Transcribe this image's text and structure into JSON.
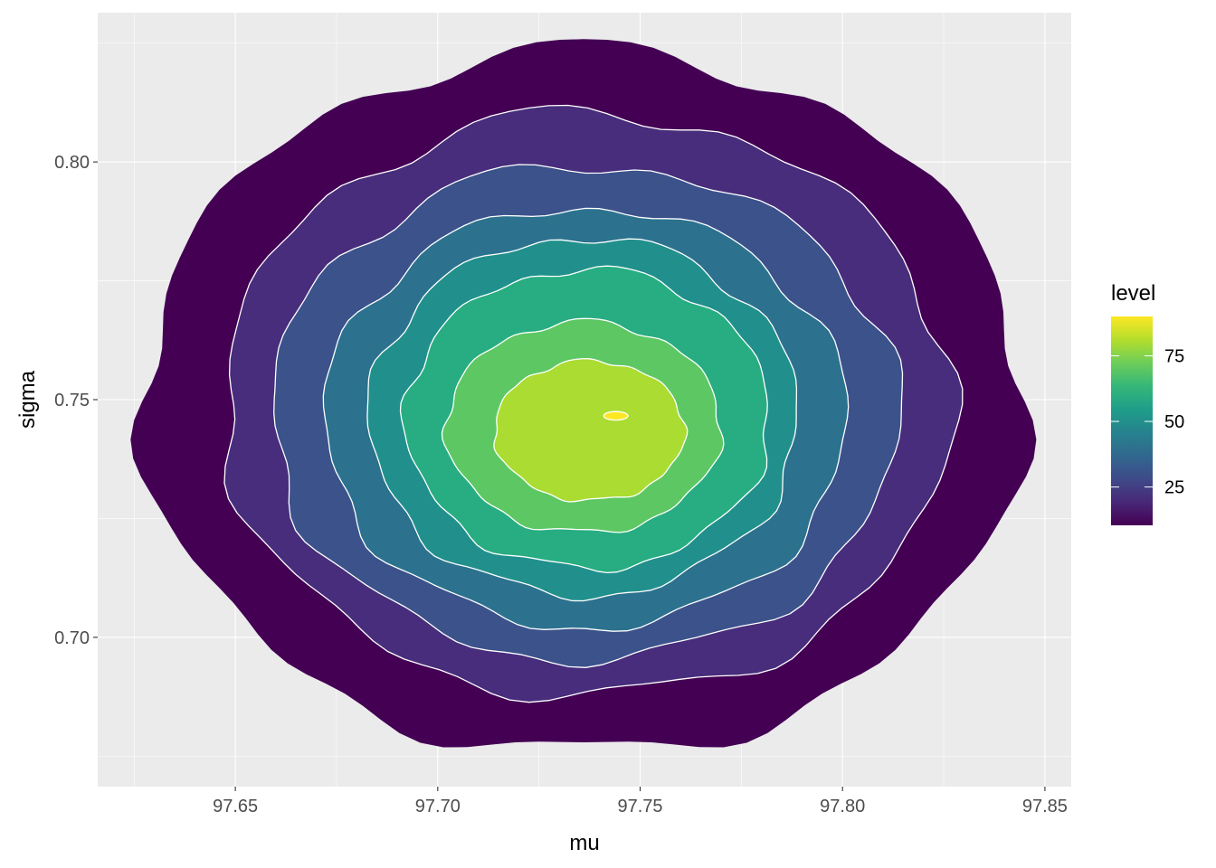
{
  "chart_data": {
    "type": "contour-filled",
    "title": "",
    "xlabel": "mu",
    "ylabel": "sigma",
    "xlim": [
      97.616,
      97.8565
    ],
    "ylim": [
      0.6686,
      0.8314
    ],
    "xticks": [
      "97.65",
      "97.70",
      "97.75",
      "97.80",
      "97.85"
    ],
    "xtick_values": [
      97.65,
      97.7,
      97.75,
      97.8,
      97.85
    ],
    "yticks": [
      "0.70",
      "0.75",
      "0.80"
    ],
    "ytick_values": [
      0.7,
      0.75,
      0.8
    ],
    "grid": true,
    "legend": {
      "title": "level",
      "placement": "right",
      "range": [
        10.4,
        90
      ],
      "ticks": [
        "25",
        "50",
        "75"
      ],
      "tick_values": [
        25,
        50,
        75
      ],
      "colors": [
        "#440154",
        "#482878",
        "#3E4A89",
        "#31688E",
        "#26828E",
        "#1F9E89",
        "#35B779",
        "#6DCD59",
        "#B4DE2C",
        "#FDE725"
      ]
    },
    "contours": [
      {
        "level": 10,
        "fill": "#440154",
        "mu": [
          97.627,
          97.845
        ],
        "sigma": [
          0.6757,
          0.8236
        ]
      },
      {
        "level": 20,
        "fill": "#472D7B",
        "mu": [
          97.647,
          97.827
        ],
        "sigma": [
          0.6876,
          0.8103
        ]
      },
      {
        "level": 30,
        "fill": "#3B528B",
        "mu": [
          97.659,
          97.814
        ],
        "sigma": [
          0.6952,
          0.7992
        ]
      },
      {
        "level": 40,
        "fill": "#2C728E",
        "mu": [
          97.672,
          97.801
        ],
        "sigma": [
          0.7019,
          0.7903
        ]
      },
      {
        "level": 50,
        "fill": "#21908C",
        "mu": [
          97.683,
          97.789
        ],
        "sigma": [
          0.7087,
          0.784
        ]
      },
      {
        "level": 60,
        "fill": "#27AD81",
        "mu": [
          97.692,
          97.782
        ],
        "sigma": [
          0.7144,
          0.7774
        ]
      },
      {
        "level": 70,
        "fill": "#5DC863",
        "mu": [
          97.702,
          97.77
        ],
        "sigma": [
          0.722,
          0.7664
        ]
      },
      {
        "level": 80,
        "fill": "#AADC32",
        "mu": [
          97.714,
          97.761
        ],
        "sigma": [
          0.7287,
          0.7582
        ]
      },
      {
        "level": 90,
        "fill": "#FDE725",
        "mu": [
          97.741,
          97.747
        ],
        "sigma": [
          0.7457,
          0.7475
        ]
      }
    ]
  }
}
